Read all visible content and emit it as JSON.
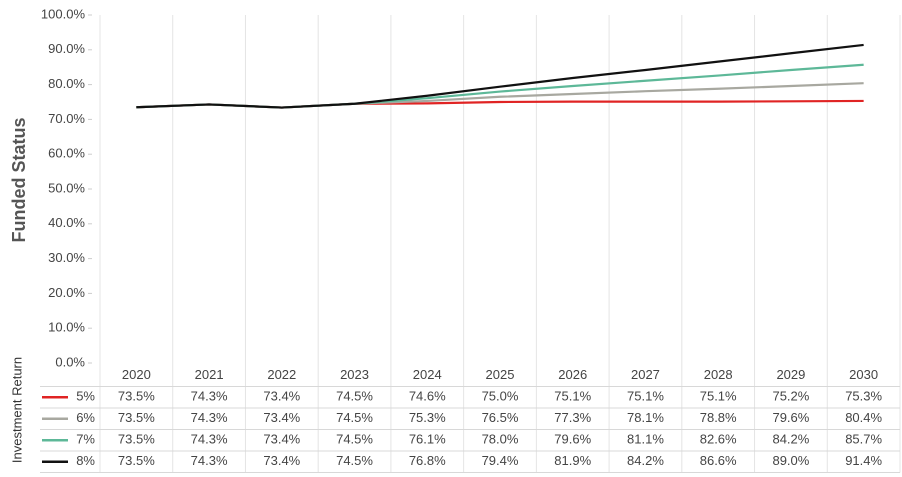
{
  "chart_data": {
    "type": "line",
    "y_axis_label": "Funded Status",
    "table_label": "Investment Return",
    "categories": [
      "2020",
      "2021",
      "2022",
      "2023",
      "2024",
      "2025",
      "2026",
      "2027",
      "2028",
      "2029",
      "2030"
    ],
    "ylim": [
      0,
      100
    ],
    "yticks": [
      {
        "value": 0,
        "label": "0.0%"
      },
      {
        "value": 10,
        "label": "10.0%"
      },
      {
        "value": 20,
        "label": "20.0%"
      },
      {
        "value": 30,
        "label": "30.0%"
      },
      {
        "value": 40,
        "label": "40.0%"
      },
      {
        "value": 50,
        "label": "50.0%"
      },
      {
        "value": 60,
        "label": "60.0%"
      },
      {
        "value": 70,
        "label": "70.0%"
      },
      {
        "value": 80,
        "label": "80.0%"
      },
      {
        "value": 90,
        "label": "90.0%"
      },
      {
        "value": 100,
        "label": "100.0%"
      }
    ],
    "series": [
      {
        "name": "5%",
        "color": "#e02424",
        "values": [
          73.5,
          74.3,
          73.4,
          74.5,
          74.6,
          75.0,
          75.1,
          75.1,
          75.1,
          75.2,
          75.3
        ],
        "value_labels": [
          "73.5%",
          "74.3%",
          "73.4%",
          "74.5%",
          "74.6%",
          "75.0%",
          "75.1%",
          "75.1%",
          "75.1%",
          "75.2%",
          "75.3%"
        ]
      },
      {
        "name": "6%",
        "color": "#a8a8a0",
        "values": [
          73.5,
          74.3,
          73.4,
          74.5,
          75.3,
          76.5,
          77.3,
          78.1,
          78.8,
          79.6,
          80.4
        ],
        "value_labels": [
          "73.5%",
          "74.3%",
          "73.4%",
          "74.5%",
          "75.3%",
          "76.5%",
          "77.3%",
          "78.1%",
          "78.8%",
          "79.6%",
          "80.4%"
        ]
      },
      {
        "name": "7%",
        "color": "#5db898",
        "values": [
          73.5,
          74.3,
          73.4,
          74.5,
          76.1,
          78.0,
          79.6,
          81.1,
          82.6,
          84.2,
          85.7
        ],
        "value_labels": [
          "73.5%",
          "74.3%",
          "73.4%",
          "74.5%",
          "76.1%",
          "78.0%",
          "79.6%",
          "81.1%",
          "82.6%",
          "84.2%",
          "85.7%"
        ]
      },
      {
        "name": "8%",
        "color": "#111111",
        "values": [
          73.5,
          74.3,
          73.4,
          74.5,
          76.8,
          79.4,
          81.9,
          84.2,
          86.6,
          89.0,
          91.4
        ],
        "value_labels": [
          "73.5%",
          "74.3%",
          "73.4%",
          "74.5%",
          "76.8%",
          "79.4%",
          "81.9%",
          "84.2%",
          "86.6%",
          "89.0%",
          "91.4%"
        ]
      }
    ]
  }
}
